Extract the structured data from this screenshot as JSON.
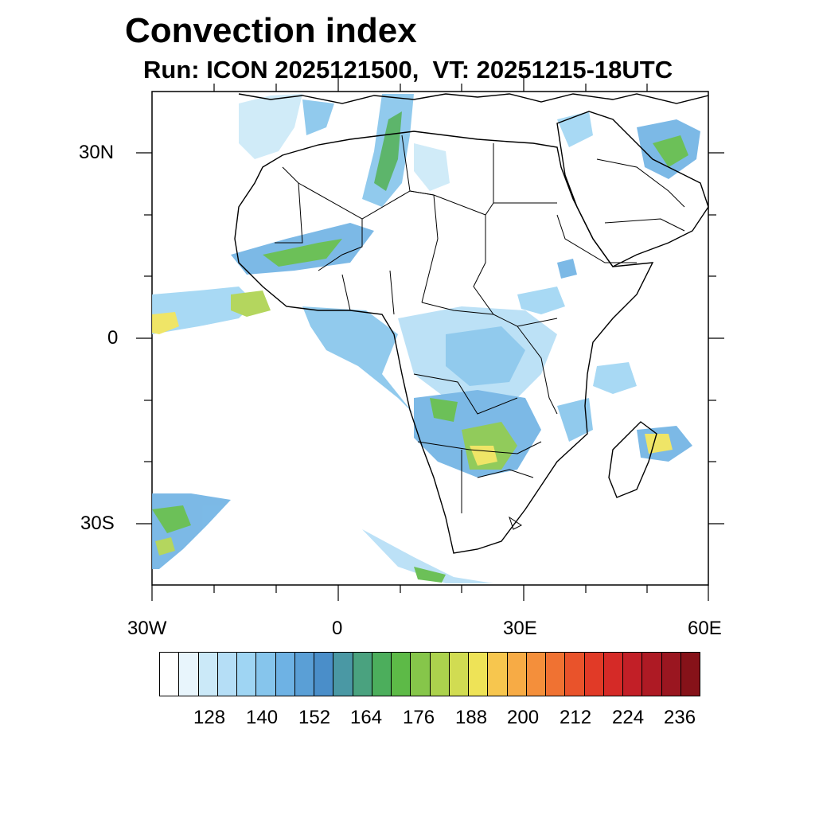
{
  "title": "Convection index",
  "subtitle": "Run: ICON 2025121500,  VT: 20251215-18UTC",
  "axes": {
    "lat_labels": [
      "30N",
      "0",
      "30S"
    ],
    "lon_labels": [
      "30W",
      "0",
      "30E",
      "60E"
    ]
  },
  "colorbar": {
    "colors": [
      "#ffffff",
      "#e8f5fc",
      "#cbe9f8",
      "#b5def6",
      "#9fd5f3",
      "#86c5ec",
      "#6eb2e4",
      "#5a9fd6",
      "#4a8ec9",
      "#4a98a4",
      "#4aa27f",
      "#4cae5c",
      "#5dba47",
      "#86c64a",
      "#acd24d",
      "#d1dc52",
      "#eee357",
      "#f7c64e",
      "#f7ab45",
      "#f48f3b",
      "#f07232",
      "#e9532b",
      "#e13a27",
      "#d52a27",
      "#c21f27",
      "#ae1a24",
      "#9a1620",
      "#861219"
    ],
    "labels": [
      "128",
      "140",
      "152",
      "164",
      "176",
      "188",
      "200",
      "212",
      "224",
      "236"
    ]
  }
}
